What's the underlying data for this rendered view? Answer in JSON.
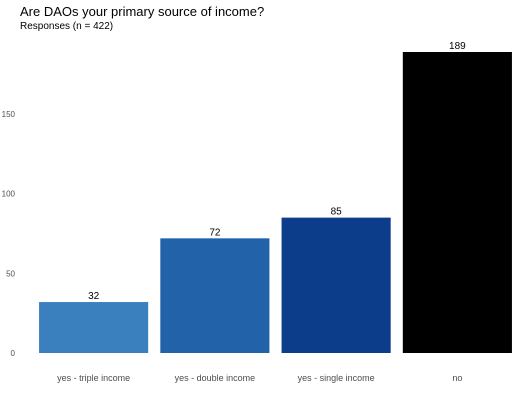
{
  "chart_data": {
    "type": "bar",
    "title": "Are DAOs your primary source of income?",
    "subtitle": "Responses (n = 422)",
    "xlabel": "",
    "ylabel": "",
    "categories": [
      "yes - triple income",
      "yes - double income",
      "yes - single income",
      "no"
    ],
    "values": [
      32,
      72,
      85,
      189
    ],
    "data_labels": [
      "32",
      "72",
      "85",
      "189"
    ],
    "yticks": [
      0,
      50,
      100,
      150
    ],
    "ytick_labels": [
      "0",
      "50",
      "100",
      "150"
    ],
    "ylim": [
      0,
      189
    ],
    "grid": false,
    "legend": "none",
    "colors": [
      "#3a80bf",
      "#2262a9",
      "#0c3d8a",
      "#000000"
    ]
  }
}
